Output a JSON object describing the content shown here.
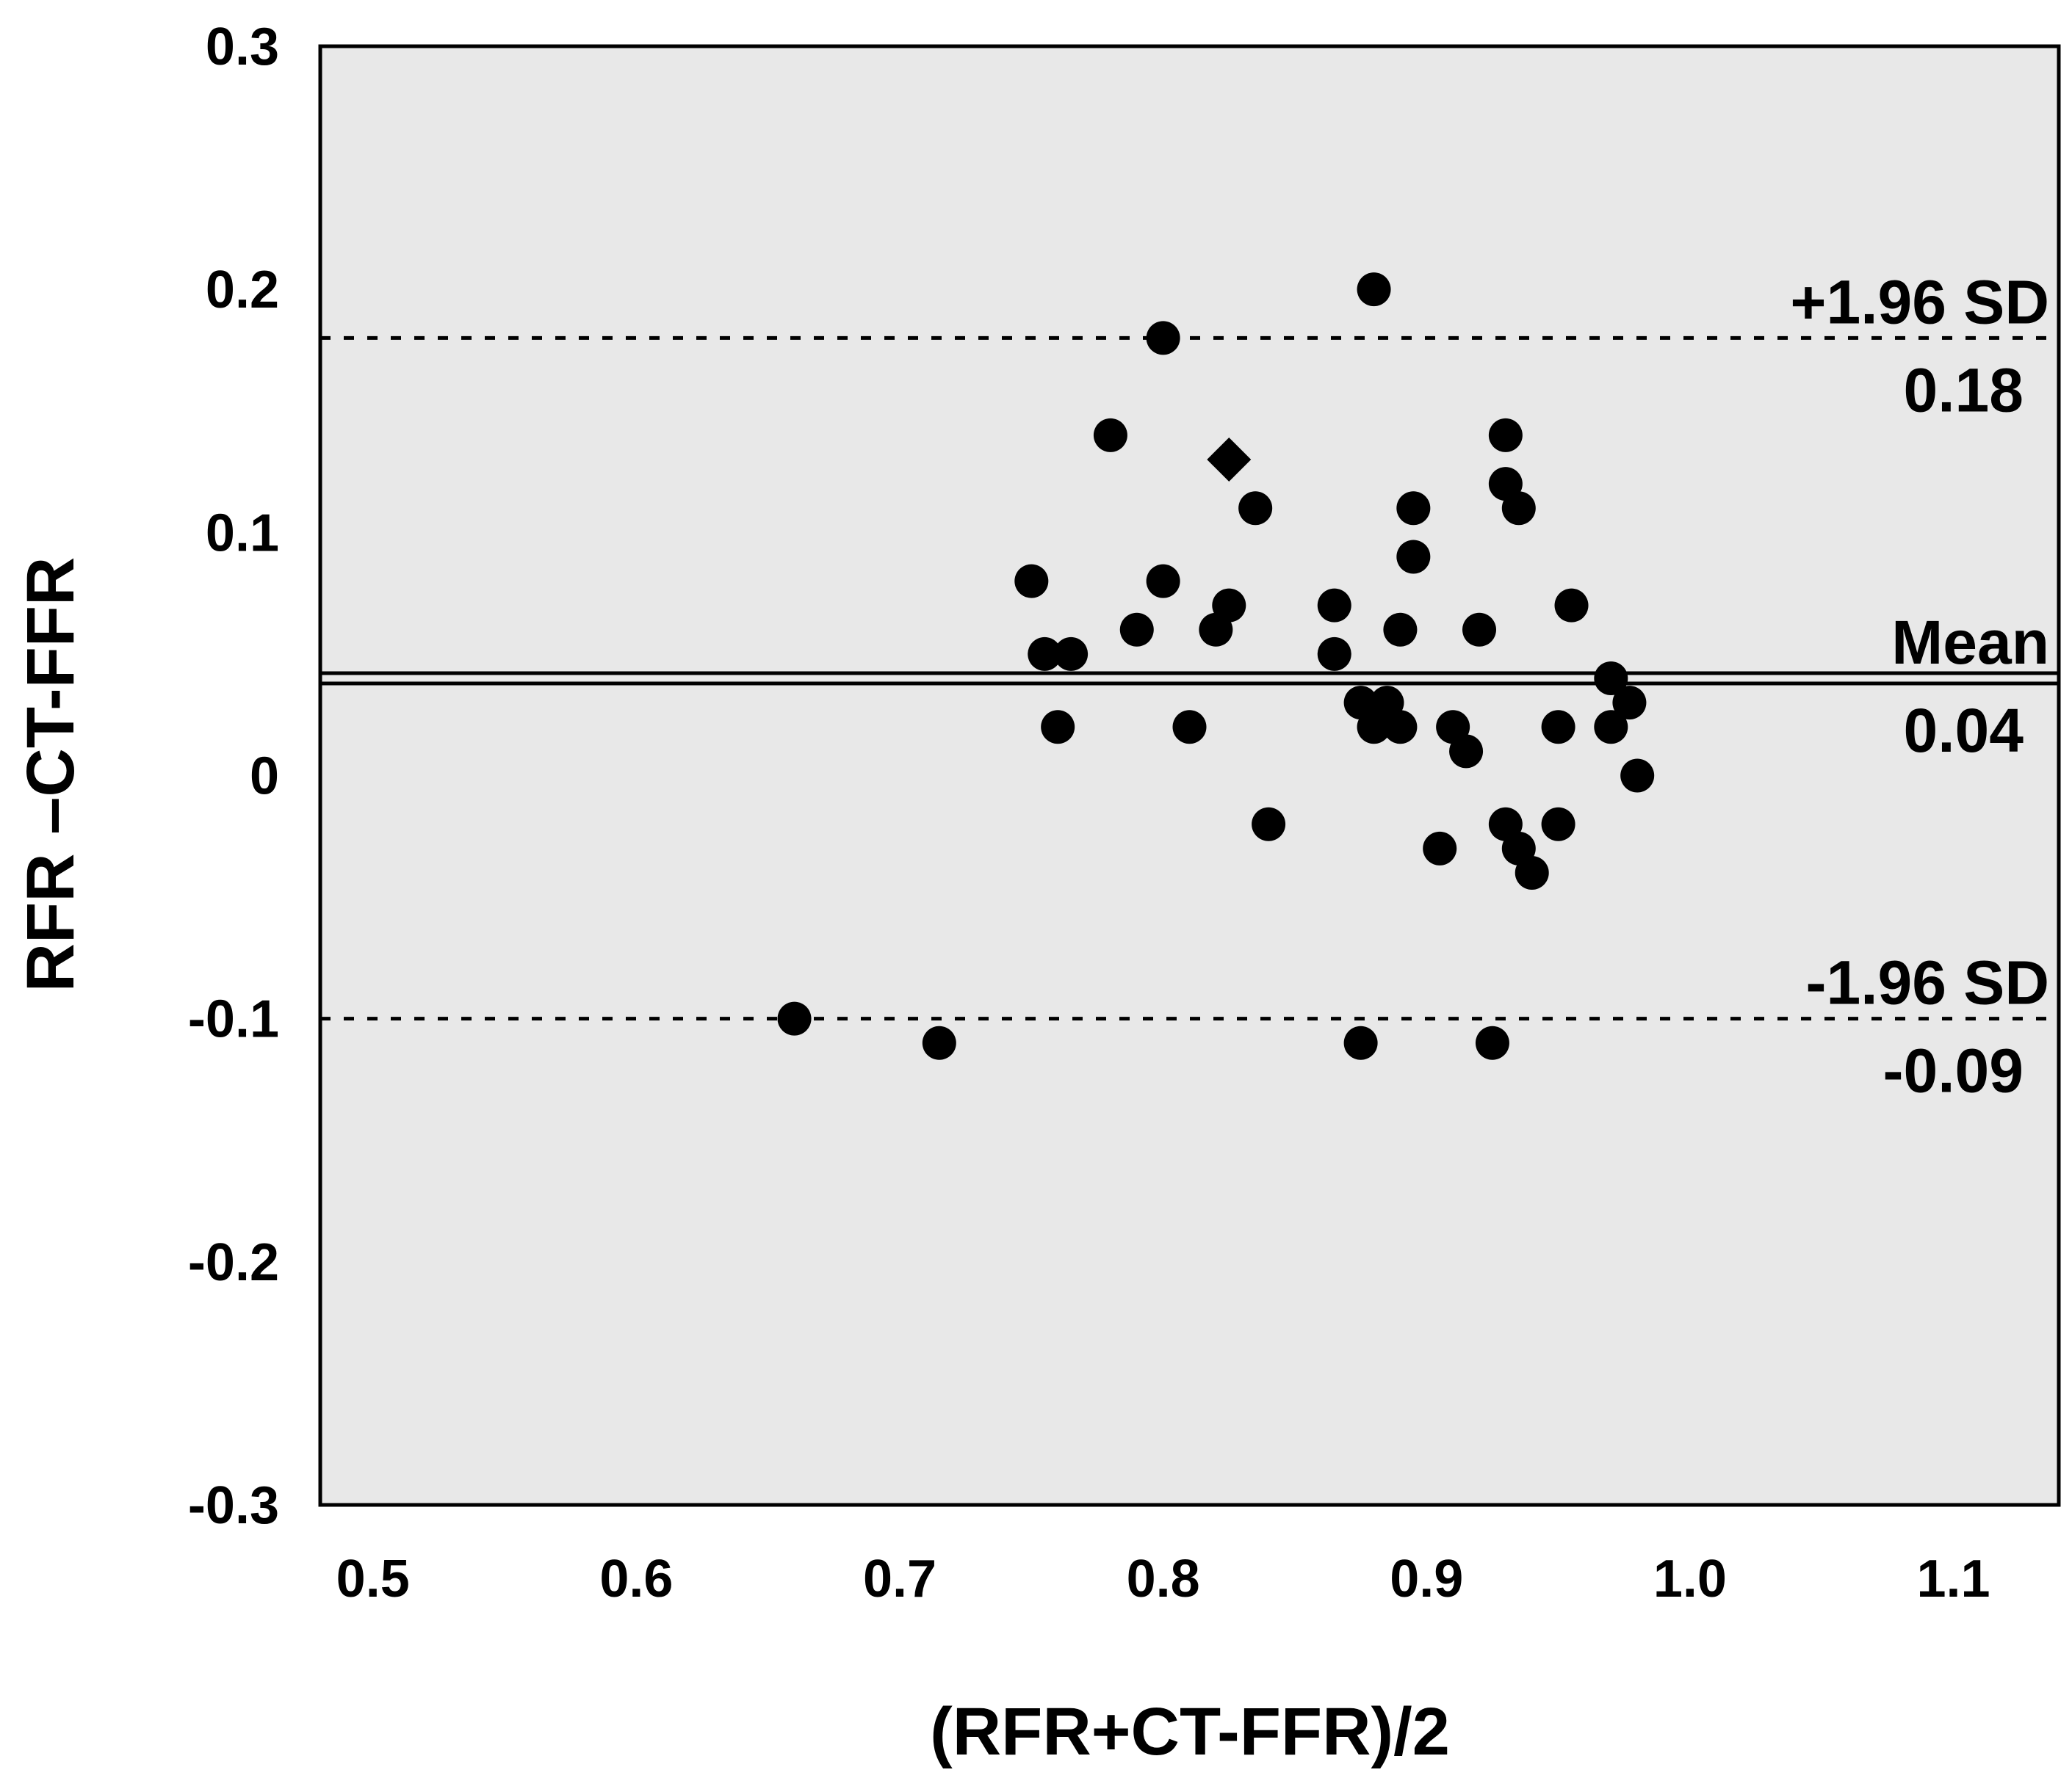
{
  "chart_data": {
    "type": "scatter",
    "title": "",
    "xlabel": "(RFR+CT-FFR)/2",
    "ylabel": "RFR –CT-FFR",
    "xlim": [
      0.48,
      1.14
    ],
    "ylim": [
      -0.3,
      0.3
    ],
    "x_ticks": [
      0.5,
      0.6,
      0.7,
      0.8,
      0.9,
      1.0,
      1.1
    ],
    "x_tick_labels": [
      "0.5",
      "0.6",
      "0.7",
      "0.8",
      "0.9",
      "1.0",
      "1.1"
    ],
    "y_ticks": [
      0.3,
      0.2,
      0.1,
      0,
      -0.1,
      -0.2,
      -0.3
    ],
    "y_tick_labels": [
      "0.3",
      "0.2",
      "0.1",
      "0",
      "-0.1",
      "-0.2",
      "-0.3"
    ],
    "grid": false,
    "background_color": "#e8e8e8",
    "marker_color": "#000000",
    "reference_lines": [
      {
        "value": 0.18,
        "style": "dashed",
        "label": "+1.96 SD",
        "value_label": "0.18"
      },
      {
        "value": 0.04,
        "style": "double-solid",
        "label": "Mean",
        "value_label": "0.04"
      },
      {
        "value": -0.1,
        "style": "dashed",
        "label": "-1.96 SD",
        "value_label": "-0.09"
      }
    ],
    "points": [
      {
        "x": 0.66,
        "y": -0.1
      },
      {
        "x": 0.715,
        "y": -0.11
      },
      {
        "x": 0.75,
        "y": 0.08
      },
      {
        "x": 0.755,
        "y": 0.05
      },
      {
        "x": 0.765,
        "y": 0.05
      },
      {
        "x": 0.76,
        "y": 0.02
      },
      {
        "x": 0.78,
        "y": 0.14
      },
      {
        "x": 0.79,
        "y": 0.06
      },
      {
        "x": 0.8,
        "y": 0.18
      },
      {
        "x": 0.8,
        "y": 0.08
      },
      {
        "x": 0.81,
        "y": 0.02
      },
      {
        "x": 0.82,
        "y": 0.06
      },
      {
        "x": 0.825,
        "y": 0.07
      },
      {
        "x": 0.835,
        "y": 0.11
      },
      {
        "x": 0.84,
        "y": -0.02
      },
      {
        "x": 0.865,
        "y": 0.07
      },
      {
        "x": 0.865,
        "y": 0.05
      },
      {
        "x": 0.875,
        "y": 0.03
      },
      {
        "x": 0.875,
        "y": -0.11
      },
      {
        "x": 0.88,
        "y": 0.2
      },
      {
        "x": 0.88,
        "y": 0.02
      },
      {
        "x": 0.885,
        "y": 0.03
      },
      {
        "x": 0.89,
        "y": 0.06
      },
      {
        "x": 0.89,
        "y": 0.02
      },
      {
        "x": 0.895,
        "y": 0.11
      },
      {
        "x": 0.895,
        "y": 0.09
      },
      {
        "x": 0.905,
        "y": -0.03
      },
      {
        "x": 0.91,
        "y": 0.02
      },
      {
        "x": 0.915,
        "y": 0.01
      },
      {
        "x": 0.92,
        "y": 0.06
      },
      {
        "x": 0.925,
        "y": -0.11
      },
      {
        "x": 0.93,
        "y": 0.14
      },
      {
        "x": 0.93,
        "y": 0.12
      },
      {
        "x": 0.93,
        "y": -0.02
      },
      {
        "x": 0.935,
        "y": 0.11
      },
      {
        "x": 0.935,
        "y": -0.03
      },
      {
        "x": 0.94,
        "y": -0.04
      },
      {
        "x": 0.95,
        "y": 0.02
      },
      {
        "x": 0.95,
        "y": -0.02
      },
      {
        "x": 0.955,
        "y": 0.07
      },
      {
        "x": 0.97,
        "y": 0.04
      },
      {
        "x": 0.97,
        "y": 0.02
      },
      {
        "x": 0.977,
        "y": 0.03
      },
      {
        "x": 0.98,
        "y": 0.0
      }
    ],
    "highlight_points": [
      {
        "x": 0.825,
        "y": 0.13,
        "marker": "diamond"
      }
    ]
  }
}
